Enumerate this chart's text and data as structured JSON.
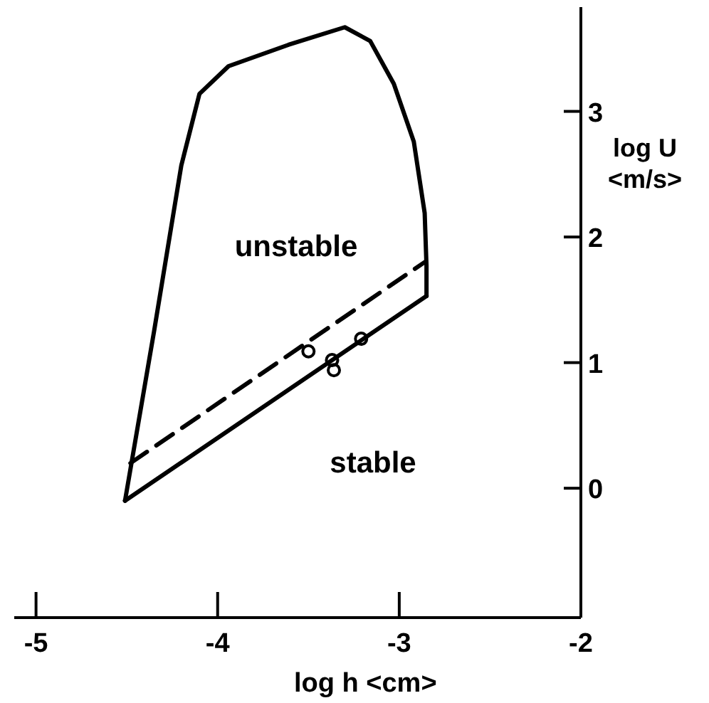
{
  "chart_data": {
    "type": "line",
    "xlabel": "log h <cm>",
    "ylabel": "log U <m/s>",
    "xlim": [
      -5.12,
      -2
    ],
    "ylim": [
      -1.03,
      3.83
    ],
    "xticks": [
      -5,
      -4,
      -3,
      -2
    ],
    "yticks": [
      0,
      1,
      2,
      3
    ],
    "grid": false,
    "series": [
      {
        "color": "#000000",
        "line_style": "solid",
        "x": [
          -4.51,
          -4.35,
          -4.2,
          -4.1,
          -3.94,
          -3.61,
          -3.3,
          -3.16,
          -3.03,
          -2.92,
          -2.86,
          -2.85,
          -2.85
        ],
        "values": [
          -0.1,
          1.25,
          2.57,
          3.14,
          3.36,
          3.53,
          3.67,
          3.56,
          3.22,
          2.76,
          2.19,
          1.77,
          1.53
        ]
      },
      {
        "color": "#000000",
        "line_style": "solid",
        "x": [
          -4.51,
          -2.85
        ],
        "values": [
          -0.1,
          1.53
        ]
      },
      {
        "color": "#000000",
        "line_style": "dashed",
        "x": [
          -4.48,
          -2.86
        ],
        "values": [
          0.2,
          1.8
        ]
      },
      {
        "type": "scatter",
        "color": "#000000",
        "marker": "circle",
        "x": [
          -3.5,
          -3.37,
          -3.36,
          -3.21
        ],
        "values": [
          1.09,
          1.02,
          0.94,
          1.19
        ]
      }
    ],
    "annotations": [
      "unstable",
      "stable"
    ]
  }
}
